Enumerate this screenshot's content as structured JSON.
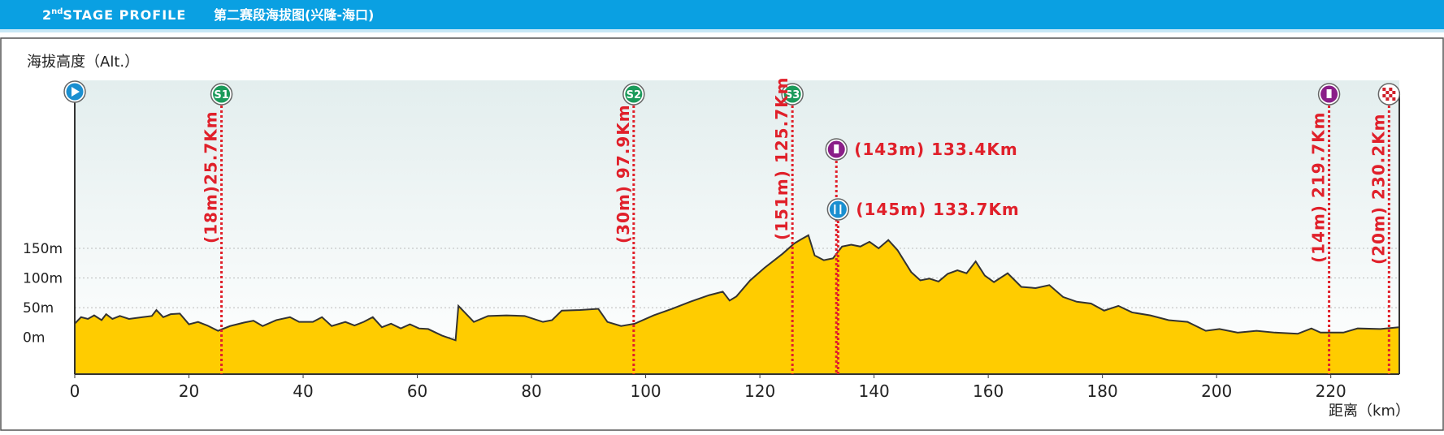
{
  "chart_data": {
    "type": "area",
    "stage_number": "2",
    "stage_suffix": "nd",
    "title": "STAGE PROFILE",
    "subtitle": "第二赛段海拔图(兴隆-海口)",
    "y_label": "海拔高度（Alt.）",
    "x_label": "距离（km）",
    "color": "#ffcc00",
    "line_color": "#333333",
    "marker_color": "#e0202a",
    "xlim": [
      0,
      232
    ],
    "xticks": [
      0,
      20,
      40,
      60,
      80,
      100,
      120,
      140,
      160,
      180,
      200,
      220
    ],
    "ylim": [
      -62,
      433
    ],
    "yticks": [
      {
        "value": 150,
        "label": "150m"
      },
      {
        "value": 100,
        "label": "100m"
      },
      {
        "value": 50,
        "label": "50m"
      },
      {
        "value": 0,
        "label": "0m"
      }
    ],
    "grid": true,
    "x": [
      0,
      1.1,
      2.3,
      3.4,
      4.7,
      5.5,
      6.6,
      7.9,
      9.5,
      11.9,
      13.5,
      14.3,
      15.5,
      16.8,
      18.4,
      20,
      21.6,
      23.2,
      25.1,
      27.2,
      29.7,
      31.3,
      32.9,
      35.3,
      37.7,
      39.3,
      41.7,
      43.3,
      45,
      47.4,
      49,
      50.6,
      52.2,
      53.8,
      55.4,
      57.1,
      58.7,
      60.3,
      61.9,
      64.3,
      66.7,
      67.2,
      68.3,
      69.9,
      72.4,
      75.6,
      78.8,
      82,
      83.6,
      85.3,
      88.5,
      91.7,
      93.3,
      95.7,
      98.1,
      101.4,
      104.6,
      107.8,
      111.1,
      113.5,
      114.7,
      115.9,
      118.3,
      120.8,
      124,
      126,
      127.2,
      128.5,
      129.6,
      131.2,
      132.8,
      134.4,
      136,
      137.6,
      139.2,
      140.8,
      142.5,
      144.1,
      146.5,
      148.1,
      149.7,
      151.3,
      152.9,
      154.6,
      156.2,
      157.8,
      159.4,
      161,
      163.4,
      165.8,
      168.3,
      170.7,
      173.1,
      175.5,
      178,
      180.3,
      182.8,
      185.2,
      188.4,
      191.6,
      194.9,
      198.1,
      200.5,
      203.7,
      207,
      210.2,
      214.2,
      216.6,
      218.2,
      222.2,
      224.7,
      228.7,
      231.9
    ],
    "values": [
      23,
      34,
      31,
      37,
      29,
      39,
      31,
      36,
      31,
      34,
      36,
      46,
      34,
      39,
      40,
      22,
      26,
      20,
      11,
      19,
      25,
      28,
      19,
      29,
      34,
      26,
      26,
      34,
      19,
      26,
      20,
      26,
      34,
      17,
      23,
      15,
      22,
      15,
      14,
      3,
      -5,
      53,
      42,
      26,
      36,
      37,
      36,
      26,
      29,
      45,
      46,
      48,
      26,
      19,
      23,
      37,
      48,
      60,
      71,
      77,
      62,
      69,
      96,
      117,
      141,
      158,
      165,
      172,
      138,
      130,
      133,
      153,
      156,
      153,
      161,
      150,
      164,
      147,
      110,
      96,
      99,
      94,
      107,
      113,
      108,
      128,
      104,
      93,
      108,
      85,
      83,
      88,
      68,
      60,
      57,
      45,
      53,
      42,
      37,
      29,
      26,
      11,
      14,
      8,
      11,
      8,
      6,
      15,
      8,
      8,
      15,
      14,
      17
    ],
    "markers": {
      "km": [
        25.7,
        97.9,
        125.7,
        133.4,
        133.7,
        219.7,
        230.2
      ],
      "labels": [
        "(18m)25.7Km",
        "(30m) 97.9Km",
        "(151m) 125.7Km",
        "(143m) 133.4Km",
        "(145m) 133.7Km",
        "(14m) 219.7Km",
        "(20m) 230.2Km"
      ]
    },
    "sprints": [
      "S1",
      "S2",
      "S3"
    ]
  }
}
